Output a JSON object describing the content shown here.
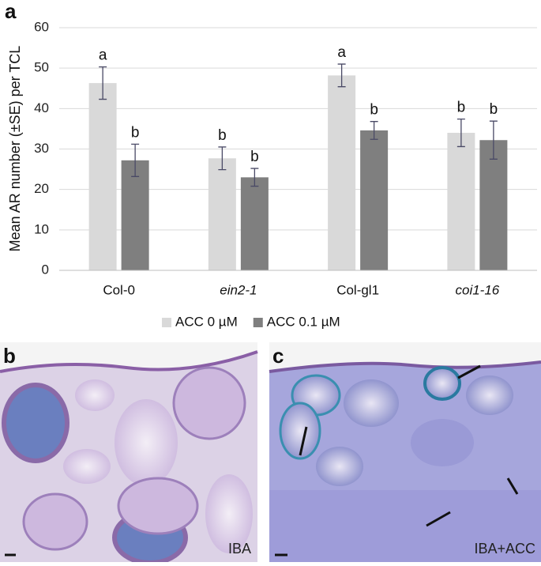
{
  "chart_data": {
    "type": "bar",
    "y_label": "Mean AR number (±SE) per TCL",
    "categories": [
      "Col-0",
      "ein2-1",
      "Col-gl1",
      "coi1-16"
    ],
    "series": [
      {
        "name": "ACC 0 µM",
        "color": "#d9d9d9",
        "values": [
          46.3,
          27.7,
          48.2,
          34.0
        ],
        "errors": [
          4.0,
          2.8,
          2.8,
          3.4
        ],
        "letters": [
          "a",
          "b",
          "a",
          "b"
        ]
      },
      {
        "name": "ACC 0.1 µM",
        "color": "#7f7f7f",
        "values": [
          27.2,
          23.0,
          34.6,
          32.2
        ],
        "errors": [
          4.0,
          2.2,
          2.2,
          4.7
        ],
        "letters": [
          "b",
          "b",
          "b",
          "b"
        ]
      }
    ],
    "ylim": [
      0,
      60
    ],
    "yticks": [
      0,
      10,
      20,
      30,
      40,
      50,
      60
    ],
    "grid": true,
    "legend": "bottom"
  },
  "panels": [
    {
      "label": "a"
    },
    {
      "label": "b",
      "caption": "IBA"
    },
    {
      "label": "c",
      "caption": "IBA+ACC"
    }
  ]
}
